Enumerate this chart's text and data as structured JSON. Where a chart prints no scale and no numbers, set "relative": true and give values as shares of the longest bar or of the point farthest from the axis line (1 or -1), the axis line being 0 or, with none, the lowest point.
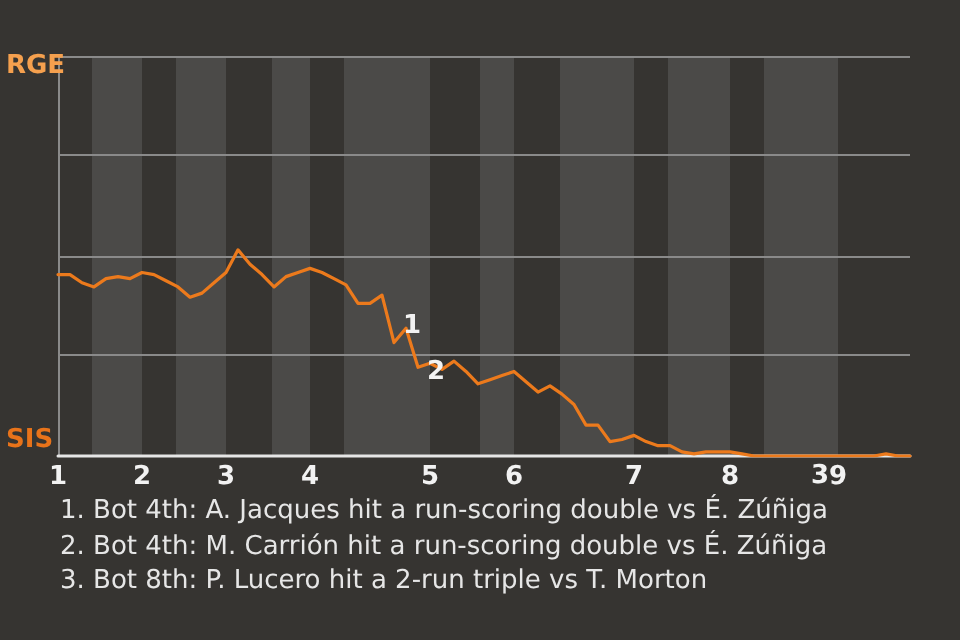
{
  "chart_data": {
    "type": "line",
    "categories": [
      "1",
      null,
      null,
      null,
      null,
      null,
      null,
      "2",
      null,
      null,
      null,
      null,
      null,
      null,
      "3",
      null,
      null,
      null,
      null,
      null,
      null,
      "4",
      null,
      null,
      null,
      null,
      null,
      null,
      null,
      null,
      null,
      "5",
      null,
      null,
      null,
      null,
      null,
      null,
      "6",
      null,
      null,
      null,
      null,
      null,
      null,
      null,
      null,
      null,
      "7",
      null,
      null,
      null,
      null,
      null,
      null,
      null,
      "8",
      null,
      null,
      null,
      null,
      null,
      null,
      null,
      null,
      "9",
      null,
      null,
      null,
      null,
      null,
      null
    ],
    "series": [
      {
        "color": "#ec7a1c",
        "values": [
          0.88,
          0.88,
          0.84,
          0.82,
          0.86,
          0.87,
          0.86,
          0.89,
          0.88,
          0.85,
          0.82,
          0.77,
          0.79,
          0.84,
          0.89,
          1,
          0.93,
          0.88,
          0.82,
          0.87,
          0.89,
          0.91,
          0.89,
          0.86,
          0.83,
          0.74,
          0.74,
          0.78,
          0.55,
          0.62,
          0.43,
          0.45,
          0.42,
          0.46,
          0.41,
          0.35,
          0.37,
          0.39,
          0.41,
          0.36,
          0.31,
          0.34,
          0.3,
          0.25,
          0.15,
          0.15,
          0.07,
          0.08,
          0.1,
          0.07,
          0.05,
          0.05,
          0.02,
          0.01,
          0.02,
          0.02,
          0.02,
          0.01,
          0,
          0,
          0,
          0,
          0,
          0,
          0,
          0,
          0,
          0,
          0,
          0.01,
          0,
          0
        ]
      }
    ],
    "relative": true,
    "ref_lines": [
      {
        "axis": "y",
        "value": 0.49,
        "color": "#8a8a8a"
      },
      {
        "axis": "y",
        "value": 0.97,
        "color": "#8a8a8a"
      },
      {
        "axis": "y",
        "value": 1.46,
        "color": "#8a8a8a"
      },
      {
        "axis": "y",
        "value": 1.94,
        "color": "#8a8a8a"
      }
    ],
    "marker": "none",
    "annotations": [
      "RGE",
      "SIS",
      "1",
      "2",
      "3",
      "1. Bot 4th: A. Jacques hit a run-scoring double vs É. Zúñiga",
      "2. Bot 4th: M. Carrión hit a run-scoring double vs É. Zúñiga",
      "3. Bot 8th: P. Lucero hit a 2-run triple vs T. Morton"
    ]
  }
}
